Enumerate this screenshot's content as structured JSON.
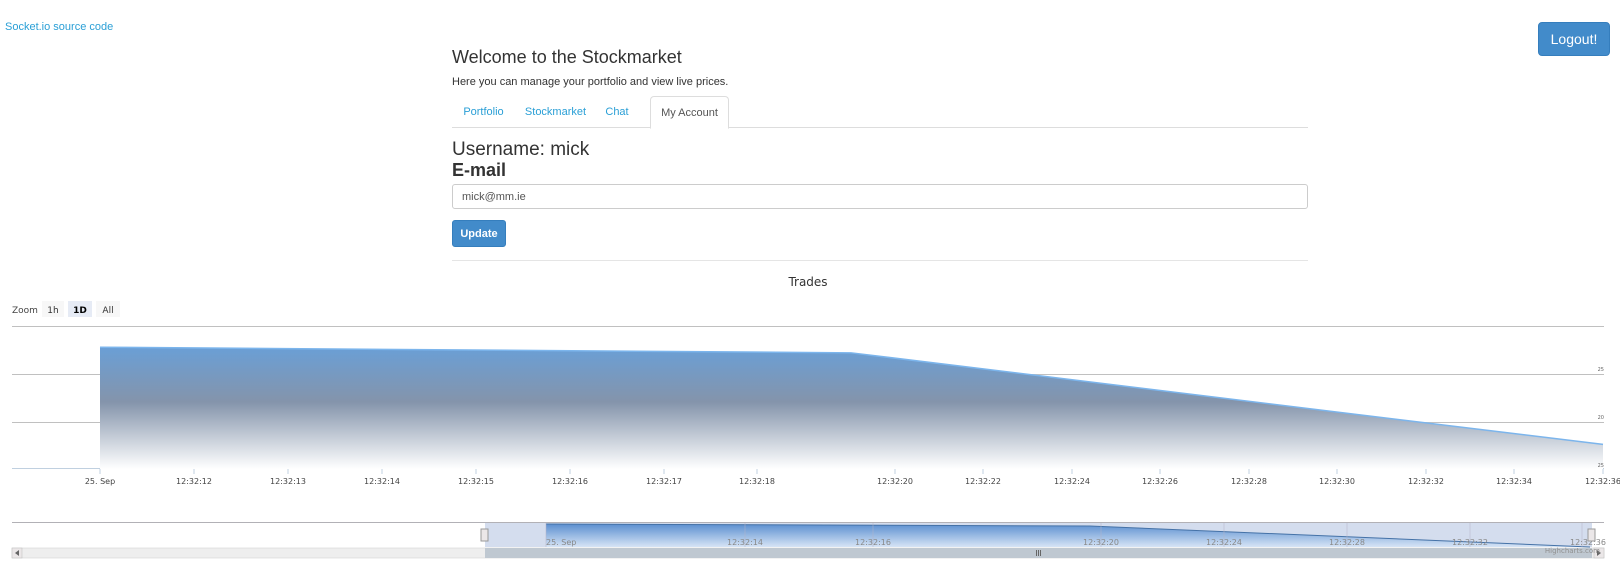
{
  "header": {
    "source_link": "Socket.io source code",
    "logout_label": "Logout!"
  },
  "page": {
    "title": "Welcome to the Stockmarket",
    "intro": "Here you can manage your portfolio and view live prices."
  },
  "tabs": [
    {
      "label": "Portfolio",
      "active": false
    },
    {
      "label": "Stockmarket",
      "active": false
    },
    {
      "label": "Chat",
      "active": false
    },
    {
      "label": "My Account",
      "active": true
    }
  ],
  "account": {
    "username_line": "Username: mick",
    "email_label": "E-mail",
    "email_value": "mick@mm.ie",
    "update_label": "Update"
  },
  "chart_data": {
    "type": "area",
    "title": "Trades",
    "zoom": {
      "label": "Zoom",
      "buttons": [
        "1h",
        "1D",
        "All"
      ],
      "selected": "1D"
    },
    "x_ticks": [
      "25. Sep",
      "12:32:12",
      "12:32:13",
      "12:32:14",
      "12:32:15",
      "12:32:16",
      "12:32:17",
      "12:32:18",
      "12:32:20",
      "12:32:22",
      "12:32:24",
      "12:32:26",
      "12:32:28",
      "12:32:30",
      "12:32:32",
      "12:32:34",
      "12:32:36"
    ],
    "y_ticks": [
      "25",
      "20",
      "25"
    ],
    "x": [
      "12:32:11",
      "12:32:19",
      "12:32:36"
    ],
    "values": [
      25.7,
      25.2,
      17.0
    ],
    "series": [
      {
        "values": [
          25.7,
          25.2,
          17.0
        ]
      }
    ],
    "navigator_ticks": [
      "25. Sep",
      "12:32:14",
      "12:32:16",
      "12:32:20",
      "12:32:24",
      "12:32:28",
      "12:32:32",
      "12:32:36"
    ],
    "credits": "Highcharts.com",
    "colors": {
      "line": "#7cb5ec",
      "area_top": "#6a9fd6",
      "area_bottom": "#ffffff",
      "grid": "#c0c0c0"
    }
  }
}
